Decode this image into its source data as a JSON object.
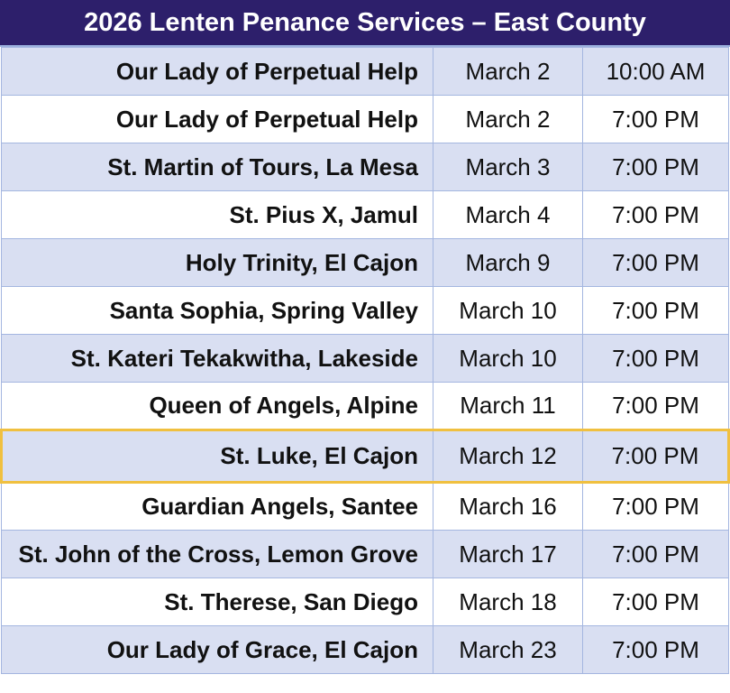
{
  "title": "2026 Lenten Penance Services – East County",
  "colors": {
    "header_bg": "#2d1f6b",
    "alt_row": "#d9dff2",
    "highlight_border": "#f0c040"
  },
  "highlighted_row": 8,
  "rows": [
    {
      "location": "Our Lady of Perpetual Help",
      "date": "March 2",
      "time": "10:00 AM"
    },
    {
      "location": "Our Lady of Perpetual Help",
      "date": "March 2",
      "time": "7:00 PM"
    },
    {
      "location": "St. Martin of Tours, La Mesa",
      "date": "March 3",
      "time": "7:00 PM"
    },
    {
      "location": "St. Pius X, Jamul",
      "date": "March 4",
      "time": "7:00 PM"
    },
    {
      "location": "Holy Trinity, El Cajon",
      "date": "March 9",
      "time": "7:00 PM"
    },
    {
      "location": "Santa Sophia, Spring Valley",
      "date": "March 10",
      "time": "7:00 PM"
    },
    {
      "location": "St. Kateri Tekakwitha, Lakeside",
      "date": "March 10",
      "time": "7:00 PM"
    },
    {
      "location": "Queen of Angels, Alpine",
      "date": "March 11",
      "time": "7:00 PM"
    },
    {
      "location": "St. Luke, El Cajon",
      "date": "March 12",
      "time": "7:00 PM"
    },
    {
      "location": "Guardian Angels, Santee",
      "date": "March 16",
      "time": "7:00 PM"
    },
    {
      "location": "St. John of the Cross, Lemon Grove",
      "date": "March 17",
      "time": "7:00 PM"
    },
    {
      "location": "St. Therese, San Diego",
      "date": "March 18",
      "time": "7:00 PM"
    },
    {
      "location": "Our Lady of Grace, El Cajon",
      "date": "March 23",
      "time": "7:00 PM"
    }
  ]
}
